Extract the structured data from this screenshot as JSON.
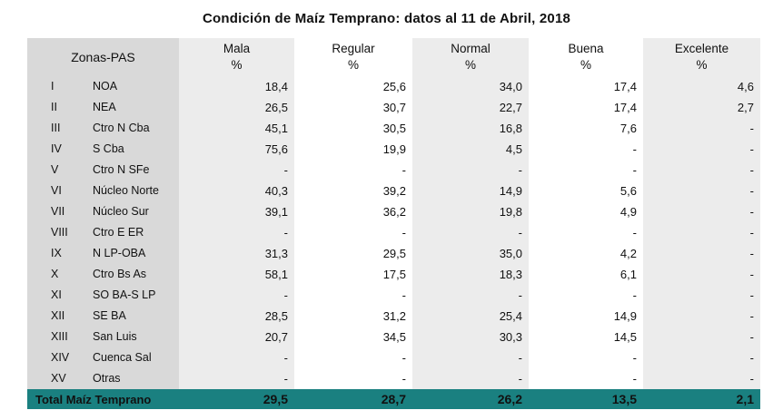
{
  "title": "Condición de Maíz Temprano: datos al 11 de Abril, 2018",
  "header": {
    "zone": "Zonas-PAS",
    "columns": [
      {
        "label": "Mala",
        "unit": "%"
      },
      {
        "label": "Regular",
        "unit": "%"
      },
      {
        "label": "Normal",
        "unit": "%"
      },
      {
        "label": "Buena",
        "unit": "%"
      },
      {
        "label": "Excelente",
        "unit": "%"
      }
    ]
  },
  "rows": [
    {
      "roman": "I",
      "zone": "NOA",
      "values": [
        "18,4",
        "25,6",
        "34,0",
        "17,4",
        "4,6"
      ]
    },
    {
      "roman": "II",
      "zone": "NEA",
      "values": [
        "26,5",
        "30,7",
        "22,7",
        "17,4",
        "2,7"
      ]
    },
    {
      "roman": "III",
      "zone": "Ctro N Cba",
      "values": [
        "45,1",
        "30,5",
        "16,8",
        "7,6",
        "-"
      ]
    },
    {
      "roman": "IV",
      "zone": "S Cba",
      "values": [
        "75,6",
        "19,9",
        "4,5",
        "-",
        "-"
      ]
    },
    {
      "roman": "V",
      "zone": "Ctro N SFe",
      "values": [
        "-",
        "-",
        "-",
        "-",
        "-"
      ]
    },
    {
      "roman": "VI",
      "zone": "Núcleo Norte",
      "values": [
        "40,3",
        "39,2",
        "14,9",
        "5,6",
        "-"
      ]
    },
    {
      "roman": "VII",
      "zone": "Núcleo Sur",
      "values": [
        "39,1",
        "36,2",
        "19,8",
        "4,9",
        "-"
      ]
    },
    {
      "roman": "VIII",
      "zone": "Ctro E ER",
      "values": [
        "-",
        "-",
        "-",
        "-",
        "-"
      ]
    },
    {
      "roman": "IX",
      "zone": "N LP-OBA",
      "values": [
        "31,3",
        "29,5",
        "35,0",
        "4,2",
        "-"
      ]
    },
    {
      "roman": "X",
      "zone": "Ctro Bs As",
      "values": [
        "58,1",
        "17,5",
        "18,3",
        "6,1",
        "-"
      ]
    },
    {
      "roman": "XI",
      "zone": "SO BA-S LP",
      "values": [
        "-",
        "-",
        "-",
        "-",
        "-"
      ]
    },
    {
      "roman": "XII",
      "zone": "SE BA",
      "values": [
        "28,5",
        "31,2",
        "25,4",
        "14,9",
        "-"
      ]
    },
    {
      "roman": "XIII",
      "zone": "San Luis",
      "values": [
        "20,7",
        "34,5",
        "30,3",
        "14,5",
        "-"
      ]
    },
    {
      "roman": "XIV",
      "zone": "Cuenca Sal",
      "values": [
        "-",
        "-",
        "-",
        "-",
        "-"
      ]
    },
    {
      "roman": "XV",
      "zone": "Otras",
      "values": [
        "-",
        "-",
        "-",
        "-",
        "-"
      ]
    }
  ],
  "total": {
    "label": "Total Maíz Temprano",
    "values": [
      "29,5",
      "28,7",
      "26,2",
      "13,5",
      "2,1"
    ]
  },
  "colors": {
    "zone_column": "#d9d9d9",
    "shaded_column": "#ececec",
    "total_row": "#1a8080"
  }
}
